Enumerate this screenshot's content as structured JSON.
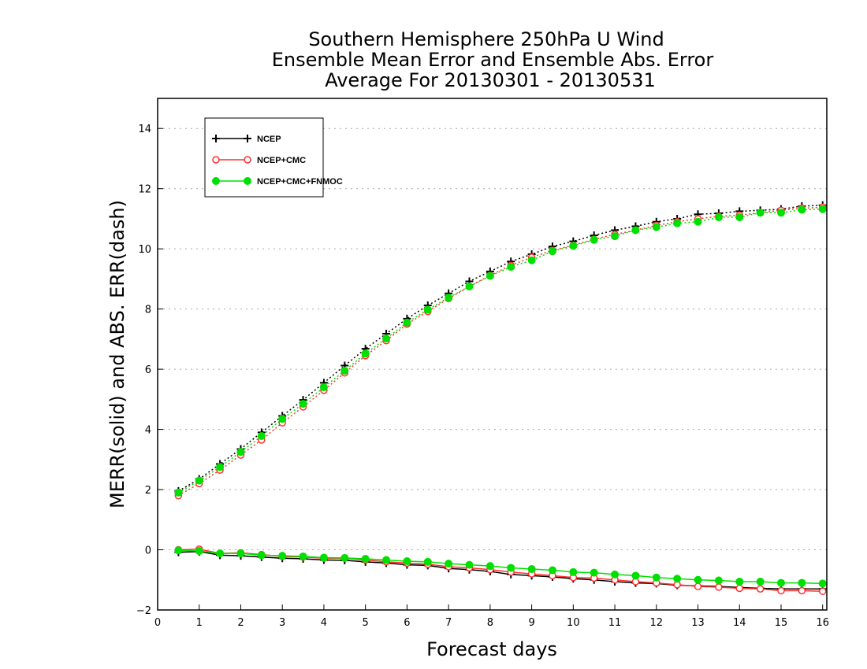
{
  "chart_data": {
    "type": "line",
    "title": [
      "Southern Hemisphere 250hPa U Wind",
      "Ensemble Mean Error and Ensemble Abs. Error",
      "Average For 20130301 - 20130531"
    ],
    "xlabel": "Forecast days",
    "ylabel": "MERR(solid) and ABS. ERR(dash)",
    "xlim": [
      0,
      16.1
    ],
    "ylim": [
      -2,
      15
    ],
    "xticks": [
      0,
      1,
      2,
      3,
      4,
      5,
      6,
      7,
      8,
      9,
      10,
      11,
      12,
      13,
      14,
      15,
      16
    ],
    "yticks": [
      -2,
      0,
      2,
      4,
      6,
      8,
      10,
      12,
      14
    ],
    "grid": "horizontal-dotted",
    "legend_position": "top-left",
    "x": [
      0.5,
      1,
      1.5,
      2,
      2.5,
      3,
      3.5,
      4,
      4.5,
      5,
      5.5,
      6,
      6.5,
      7,
      7.5,
      8,
      8.5,
      9,
      9.5,
      10,
      10.5,
      11,
      11.5,
      12,
      12.5,
      13,
      13.5,
      14,
      14.5,
      15,
      15.5,
      16
    ],
    "series": [
      {
        "name": "NCEP",
        "color": "#000000",
        "marker": "plus",
        "merr": [
          -0.08,
          -0.06,
          -0.18,
          -0.2,
          -0.24,
          -0.28,
          -0.3,
          -0.34,
          -0.35,
          -0.4,
          -0.44,
          -0.5,
          -0.52,
          -0.62,
          -0.66,
          -0.72,
          -0.82,
          -0.86,
          -0.9,
          -0.96,
          -1.0,
          -1.06,
          -1.1,
          -1.12,
          -1.18,
          -1.2,
          -1.22,
          -1.25,
          -1.28,
          -1.3,
          -1.3,
          -1.3
        ],
        "abs_err": [
          1.95,
          2.35,
          2.85,
          3.35,
          3.9,
          4.45,
          4.98,
          5.55,
          6.12,
          6.68,
          7.18,
          7.68,
          8.12,
          8.52,
          8.92,
          9.25,
          9.58,
          9.82,
          10.08,
          10.25,
          10.45,
          10.62,
          10.75,
          10.9,
          11.0,
          11.15,
          11.18,
          11.25,
          11.28,
          11.32,
          11.42,
          11.45
        ]
      },
      {
        "name": "NCEP+CMC",
        "color": "#ff3030",
        "marker": "circle-open",
        "merr": [
          0.0,
          0.02,
          -0.12,
          -0.1,
          -0.16,
          -0.22,
          -0.24,
          -0.28,
          -0.28,
          -0.34,
          -0.4,
          -0.44,
          -0.48,
          -0.56,
          -0.6,
          -0.66,
          -0.74,
          -0.8,
          -0.86,
          -0.92,
          -0.94,
          -1.0,
          -1.06,
          -1.1,
          -1.16,
          -1.22,
          -1.24,
          -1.28,
          -1.3,
          -1.36,
          -1.36,
          -1.38
        ],
        "abs_err": [
          1.8,
          2.2,
          2.65,
          3.15,
          3.65,
          4.22,
          4.75,
          5.3,
          5.88,
          6.45,
          6.95,
          7.5,
          7.92,
          8.35,
          8.75,
          9.12,
          9.45,
          9.72,
          9.95,
          10.12,
          10.32,
          10.48,
          10.62,
          10.78,
          10.9,
          11.0,
          11.08,
          11.12,
          11.2,
          11.28,
          11.35,
          11.38
        ]
      },
      {
        "name": "NCEP+CMC+FNMOC",
        "color": "#00e000",
        "marker": "circle-filled",
        "merr": [
          -0.02,
          -0.04,
          -0.12,
          -0.12,
          -0.18,
          -0.2,
          -0.22,
          -0.26,
          -0.27,
          -0.3,
          -0.34,
          -0.38,
          -0.4,
          -0.46,
          -0.5,
          -0.54,
          -0.6,
          -0.64,
          -0.68,
          -0.74,
          -0.76,
          -0.82,
          -0.86,
          -0.92,
          -0.96,
          -1.0,
          -1.02,
          -1.06,
          -1.06,
          -1.1,
          -1.1,
          -1.12
        ],
        "abs_err": [
          1.9,
          2.3,
          2.75,
          3.25,
          3.78,
          4.35,
          4.85,
          5.4,
          5.95,
          6.52,
          7.02,
          7.55,
          7.98,
          8.38,
          8.75,
          9.1,
          9.4,
          9.62,
          9.92,
          10.1,
          10.3,
          10.42,
          10.62,
          10.72,
          10.85,
          10.9,
          11.05,
          11.05,
          11.2,
          11.2,
          11.3,
          11.32
        ]
      }
    ]
  }
}
